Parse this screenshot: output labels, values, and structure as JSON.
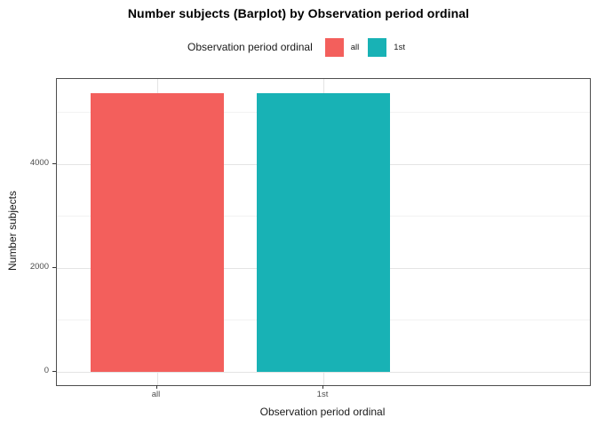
{
  "title": "Number subjects (Barplot) by Observation period ordinal",
  "legend": {
    "title": "Observation period ordinal",
    "items": [
      {
        "label": "all",
        "color": "#f35f5c"
      },
      {
        "label": "1st",
        "color": "#18b2b5"
      }
    ]
  },
  "chart_data": {
    "type": "bar",
    "title": "Number subjects (Barplot) by Observation period ordinal",
    "categories": [
      "all",
      "1st"
    ],
    "values": [
      5370,
      5370
    ],
    "bar_colors": [
      "#f35f5c",
      "#18b2b5"
    ],
    "xlabel": "Observation period ordinal",
    "ylabel": "Number subjects",
    "ylim": [
      0,
      5640
    ],
    "yticks": [
      0,
      2000,
      4000
    ],
    "yticks_minor": [
      1000,
      3000,
      5000
    ],
    "grid": true,
    "legend_position": "top",
    "panel_border_color": "#4d4d4d",
    "grid_major_color": "#e4e4e4",
    "grid_minor_color": "#f2f2f2"
  }
}
